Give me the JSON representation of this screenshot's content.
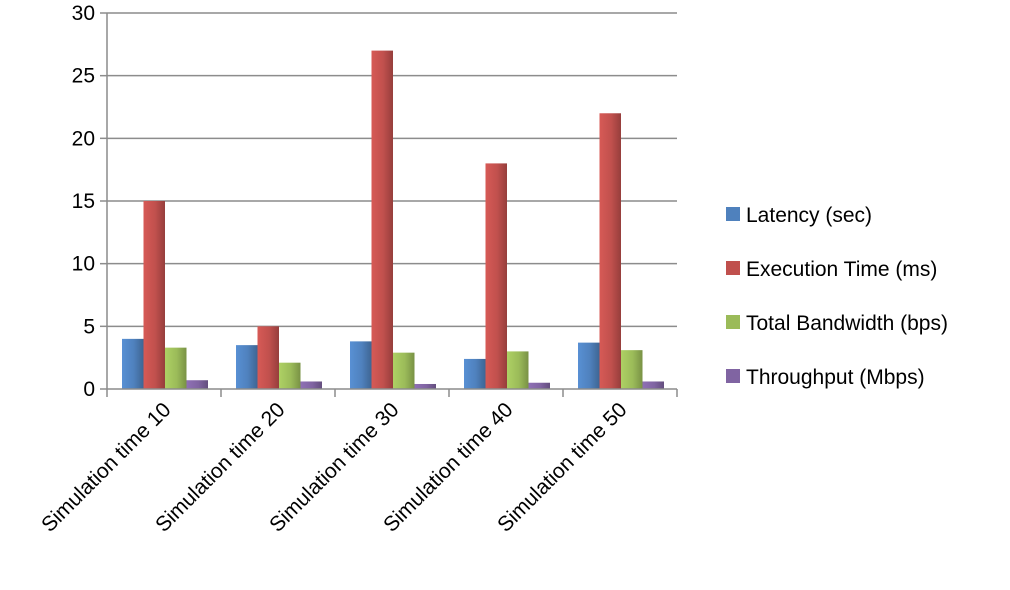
{
  "chart_data": {
    "type": "bar",
    "title": "",
    "xlabel": "",
    "ylabel": "",
    "ylim": [
      0,
      30
    ],
    "yticks": [
      0,
      5,
      10,
      15,
      20,
      25,
      30
    ],
    "grid": true,
    "legend_position": "right",
    "categories": [
      "Simulation time 10",
      "Simulation time 20",
      "Simulation time 30",
      "Simulation time 40",
      "Simulation time 50"
    ],
    "series": [
      {
        "name": "Latency (sec)",
        "color": "#4f81bd",
        "values": [
          4.0,
          3.5,
          3.8,
          2.4,
          3.7
        ]
      },
      {
        "name": "Execution Time (ms)",
        "color": "#c0504d",
        "values": [
          15,
          5,
          27,
          18,
          22
        ]
      },
      {
        "name": "Total Bandwidth (bps)",
        "color": "#9bbb59",
        "values": [
          3.3,
          2.1,
          2.9,
          3.0,
          3.1
        ]
      },
      {
        "name": "Throughput (Mbps)",
        "color": "#8064a2",
        "values": [
          0.7,
          0.6,
          0.4,
          0.5,
          0.6
        ]
      }
    ]
  }
}
